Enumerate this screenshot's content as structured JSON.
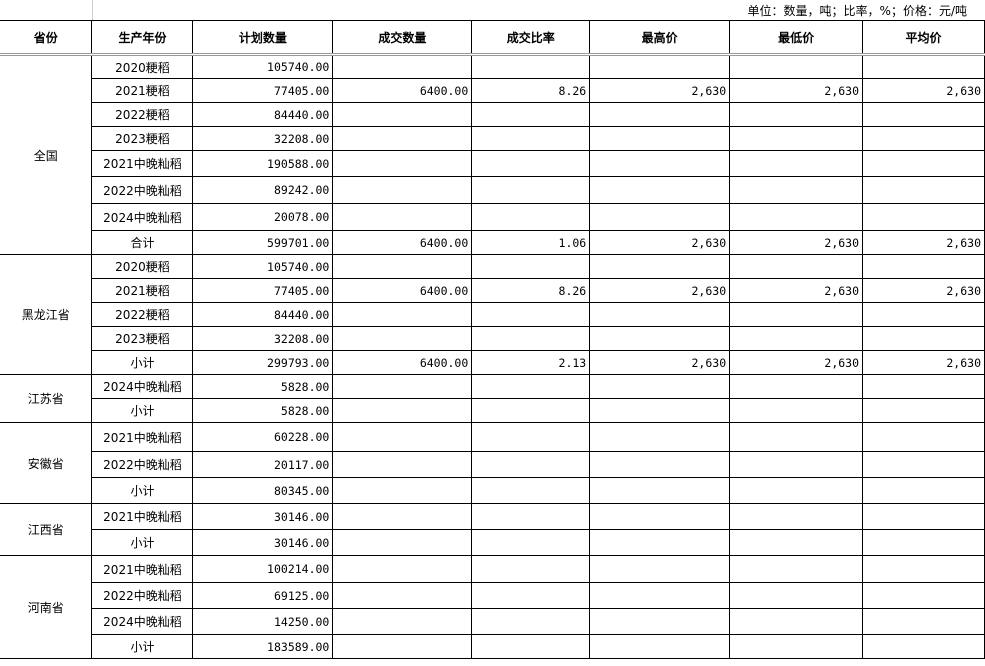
{
  "unit_note": "单位：数量，吨；比率，%；价格：元/吨",
  "headers": [
    "省份",
    "生产年份",
    "计划数量",
    "成交数量",
    "成交比率",
    "最高价",
    "最低价",
    "平均价"
  ],
  "groups": [
    {
      "province": "全国",
      "rows": [
        [
          "2020粳稻",
          "105740.00",
          "",
          "",
          "",
          "",
          ""
        ],
        [
          "2021粳稻",
          "77405.00",
          "6400.00",
          "8.26",
          "2,630",
          "2,630",
          "2,630"
        ],
        [
          "2022粳稻",
          "84440.00",
          "",
          "",
          "",
          "",
          ""
        ],
        [
          "2023粳稻",
          "32208.00",
          "",
          "",
          "",
          "",
          ""
        ],
        [
          "2021中晚籼稻",
          "190588.00",
          "",
          "",
          "",
          "",
          ""
        ],
        [
          "2022中晚籼稻",
          "89242.00",
          "",
          "",
          "",
          "",
          ""
        ],
        [
          "2024中晚籼稻",
          "20078.00",
          "",
          "",
          "",
          "",
          ""
        ],
        [
          "合计",
          "599701.00",
          "6400.00",
          "1.06",
          "2,630",
          "2,630",
          "2,630"
        ]
      ]
    },
    {
      "province": "黑龙江省",
      "rows": [
        [
          "2020粳稻",
          "105740.00",
          "",
          "",
          "",
          "",
          ""
        ],
        [
          "2021粳稻",
          "77405.00",
          "6400.00",
          "8.26",
          "2,630",
          "2,630",
          "2,630"
        ],
        [
          "2022粳稻",
          "84440.00",
          "",
          "",
          "",
          "",
          ""
        ],
        [
          "2023粳稻",
          "32208.00",
          "",
          "",
          "",
          "",
          ""
        ],
        [
          "小计",
          "299793.00",
          "6400.00",
          "2.13",
          "2,630",
          "2,630",
          "2,630"
        ]
      ]
    },
    {
      "province": "江苏省",
      "rows": [
        [
          "2024中晚籼稻",
          "5828.00",
          "",
          "",
          "",
          "",
          ""
        ],
        [
          "小计",
          "5828.00",
          "",
          "",
          "",
          "",
          ""
        ]
      ]
    },
    {
      "province": "安徽省",
      "rows": [
        [
          "2021中晚籼稻",
          "60228.00",
          "",
          "",
          "",
          "",
          ""
        ],
        [
          "2022中晚籼稻",
          "20117.00",
          "",
          "",
          "",
          "",
          ""
        ],
        [
          "小计",
          "80345.00",
          "",
          "",
          "",
          "",
          ""
        ]
      ]
    },
    {
      "province": "江西省",
      "rows": [
        [
          "2021中晚籼稻",
          "30146.00",
          "",
          "",
          "",
          "",
          ""
        ],
        [
          "小计",
          "30146.00",
          "",
          "",
          "",
          "",
          ""
        ]
      ]
    },
    {
      "province": "河南省",
      "rows": [
        [
          "2021中晚籼稻",
          "100214.00",
          "",
          "",
          "",
          "",
          ""
        ],
        [
          "2022中晚籼稻",
          "69125.00",
          "",
          "",
          "",
          "",
          ""
        ],
        [
          "2024中晚籼稻",
          "14250.00",
          "",
          "",
          "",
          "",
          ""
        ],
        [
          "小计",
          "183589.00",
          "",
          "",
          "",
          "",
          ""
        ]
      ]
    }
  ]
}
